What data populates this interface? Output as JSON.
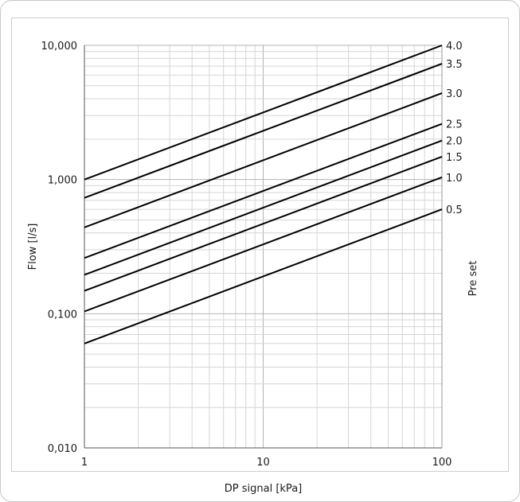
{
  "chart_data": {
    "type": "line",
    "x_scale": "log",
    "y_scale": "log",
    "xlim": [
      1,
      100
    ],
    "ylim": [
      0.01,
      10
    ],
    "xlabel": "DP signal [kPa]",
    "ylabel": "Flow [l/s]",
    "right_label": "Pre set",
    "grid": true,
    "x_ticks": [
      {
        "value": 1,
        "label": "1"
      },
      {
        "value": 10,
        "label": "10"
      },
      {
        "value": 100,
        "label": "100"
      }
    ],
    "y_ticks": [
      {
        "value": 0.01,
        "label": "0,010"
      },
      {
        "value": 0.1,
        "label": "0,100"
      },
      {
        "value": 1,
        "label": "1,000"
      },
      {
        "value": 10,
        "label": "10,000"
      }
    ],
    "series": [
      {
        "name": "4.0",
        "x": [
          1,
          100
        ],
        "y": [
          1.0,
          10.0
        ]
      },
      {
        "name": "3.5",
        "x": [
          1,
          100
        ],
        "y": [
          0.73,
          7.3
        ]
      },
      {
        "name": "3.0",
        "x": [
          1,
          100
        ],
        "y": [
          0.44,
          4.4
        ]
      },
      {
        "name": "2.5",
        "x": [
          1,
          100
        ],
        "y": [
          0.26,
          2.6
        ]
      },
      {
        "name": "2.0",
        "x": [
          1,
          100
        ],
        "y": [
          0.195,
          1.95
        ]
      },
      {
        "name": "1.5",
        "x": [
          1,
          100
        ],
        "y": [
          0.148,
          1.48
        ]
      },
      {
        "name": "1.0",
        "x": [
          1,
          100
        ],
        "y": [
          0.104,
          1.04
        ]
      },
      {
        "name": "0.5",
        "x": [
          1,
          100
        ],
        "y": [
          0.06,
          0.6
        ]
      }
    ]
  }
}
